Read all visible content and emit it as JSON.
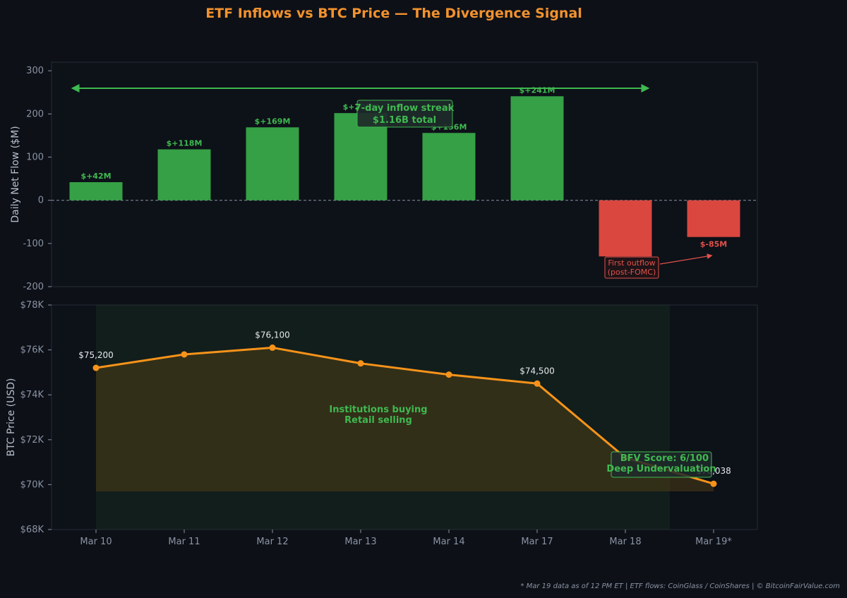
{
  "title": "ETF Inflows vs BTC Price — The Divergence Signal",
  "footer": "* Mar 19 data as of 12 PM ET  |  ETF flows: CoinGlass / CoinShares  |  © BitcoinFairValue.com",
  "colors": {
    "background": "#0d1017",
    "panel": "#0d1118",
    "inflow": "#35a045",
    "outflow": "#d9473f",
    "price_line": "#f7931a",
    "accent_green": "#3fb950",
    "accent_red": "#e0514a",
    "title": "#f2922e"
  },
  "chart_data": [
    {
      "type": "bar",
      "ylabel": "Daily Net Flow ($M)",
      "ylim": [
        -200,
        320
      ],
      "yticks": [
        300,
        200,
        100,
        0,
        -100,
        -200
      ],
      "ytick_labels": [
        "300",
        "200",
        "100",
        "0",
        "-100",
        "-200"
      ],
      "categories": [
        "Mar 10",
        "Mar 11",
        "Mar 12",
        "Mar 13",
        "Mar 14",
        "Mar 17",
        "Mar 18",
        "Mar 19*"
      ],
      "values": [
        42,
        118,
        169,
        202,
        156,
        241,
        -130,
        -85
      ],
      "data_labels": [
        "$+42M",
        "$+118M",
        "$+169M",
        "$+202M",
        "$+156M",
        "$+241M",
        "",
        "$-85M"
      ],
      "annotations": {
        "streak_line1": "7-day inflow streak",
        "streak_line2": "$1.16B total",
        "outflow_line1": "First outflow",
        "outflow_line2": "(post-FOMC)"
      }
    },
    {
      "type": "line",
      "ylabel": "BTC Price (USD)",
      "ylim": [
        68000,
        78000
      ],
      "yticks": [
        78000,
        76000,
        74000,
        72000,
        70000,
        68000
      ],
      "ytick_labels": [
        "$78K",
        "$76K",
        "$74K",
        "$72K",
        "$70K",
        "$68K"
      ],
      "x": [
        "Mar 10",
        "Mar 11",
        "Mar 12",
        "Mar 13",
        "Mar 14",
        "Mar 17",
        "Mar 18",
        "Mar 19*"
      ],
      "values": [
        75200,
        75800,
        76100,
        75400,
        74900,
        74500,
        71200,
        70038
      ],
      "point_labels": [
        "$75,200",
        "",
        "$76,100",
        "",
        "",
        "$74,500",
        "",
        "$70,038"
      ],
      "annotations": {
        "divergence_line1": "Institutions buying",
        "divergence_line2": "Retail selling",
        "score_line1": "BFV Score: 6/100",
        "score_line2": "Deep Undervaluation"
      }
    }
  ]
}
